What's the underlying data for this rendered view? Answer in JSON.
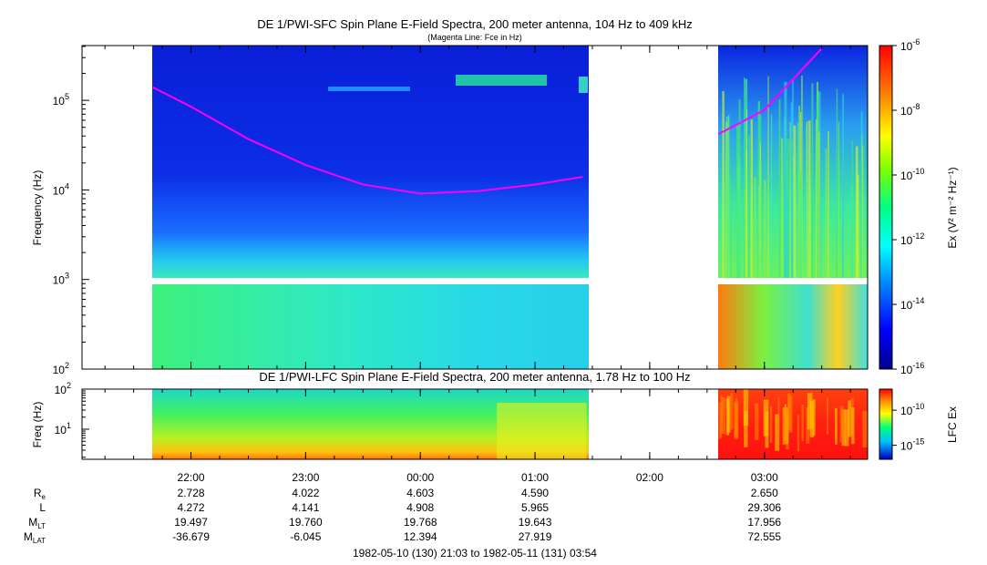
{
  "chart_data": [
    {
      "type": "heatmap",
      "title": "DE 1/PWI-SFC  Spin Plane E-Field Spectra, 200 meter antenna, 104 Hz to 409 kHz",
      "subtitle": "(Magenta Line: Fce in Hz)",
      "ylabel": "Frequency (Hz)",
      "yscale": "log",
      "ylim": [
        100,
        409000
      ],
      "y_ticks": [
        {
          "exp": "2",
          "value": 100
        },
        {
          "exp": "3",
          "value": 1000
        },
        {
          "exp": "4",
          "value": 10000
        },
        {
          "exp": "5",
          "value": 100000
        }
      ],
      "x_ticks": [
        "22:00",
        "23:00",
        "00:00",
        "01:00",
        "02:00",
        "03:00"
      ],
      "colorbar": {
        "label": "Ex (V² m⁻² Hz⁻¹)",
        "scale": "log",
        "range": [
          1e-16,
          1e-06
        ],
        "ticks": [
          {
            "exp": "-6",
            "value": 1e-06
          },
          {
            "exp": "-8",
            "value": 1e-08
          },
          {
            "exp": "-10",
            "value": 1e-10
          },
          {
            "exp": "-12",
            "value": 1e-12
          },
          {
            "exp": "-14",
            "value": 1e-14
          },
          {
            "exp": "-16",
            "value": 1e-16
          }
        ],
        "colors": [
          "#0000a0",
          "#0000ff",
          "#00a0ff",
          "#00ffff",
          "#00ff66",
          "#aaff00",
          "#ffff00",
          "#ff8800",
          "#ff0000"
        ]
      },
      "data_coverage_utc": [
        [
          "21:40",
          "01:27"
        ],
        [
          "02:36",
          "03:54"
        ]
      ],
      "gap_band_hz": [
        900,
        1040
      ],
      "fce_line": {
        "color": "#ff00ff",
        "points": [
          [
            "21:40",
            140000
          ],
          [
            "22:00",
            85000
          ],
          [
            "22:30",
            37000
          ],
          [
            "23:00",
            19000
          ],
          [
            "23:30",
            11500
          ],
          [
            "00:00",
            9100
          ],
          [
            "00:30",
            9700
          ],
          [
            "01:00",
            11500
          ],
          [
            "01:25",
            14000
          ],
          [
            "02:36",
            42000
          ],
          [
            "03:00",
            78000
          ],
          [
            "03:30",
            380000
          ]
        ]
      }
    },
    {
      "type": "heatmap",
      "title": "DE 1/PWI-LFC  Spin Plane E-Field Spectra, 200 meter antenna, 1.78 Hz to 100 Hz",
      "ylabel": "Freq (Hz)",
      "yscale": "log",
      "ylim": [
        1.78,
        100
      ],
      "y_ticks": [
        {
          "exp": "1",
          "value": 10
        },
        {
          "exp": "2",
          "value": 100
        }
      ],
      "colorbar": {
        "label": "LFC Ex",
        "scale": "log",
        "ticks": [
          {
            "exp": "-10",
            "value": 1e-10
          },
          {
            "exp": "-15",
            "value": 1e-15
          }
        ]
      },
      "data_coverage_utc": [
        [
          "21:40",
          "01:27"
        ],
        [
          "02:36",
          "03:54"
        ]
      ]
    }
  ],
  "ephemeris": {
    "columns": [
      "22:00",
      "23:00",
      "00:00",
      "01:00",
      "02:00",
      "03:00"
    ],
    "rows": [
      {
        "label": "R",
        "sub": "e",
        "values": [
          "2.728",
          "4.022",
          "4.603",
          "4.590",
          "",
          "2.650"
        ]
      },
      {
        "label": "L",
        "sub": "",
        "values": [
          "4.272",
          "4.141",
          "4.908",
          "5.965",
          "",
          "29.306"
        ]
      },
      {
        "label": "M",
        "sub": "LT",
        "values": [
          "19.497",
          "19.760",
          "19.768",
          "19.643",
          "",
          "17.956"
        ]
      },
      {
        "label": "M",
        "sub": "LAT",
        "values": [
          "-36.679",
          "-6.045",
          "12.394",
          "27.919",
          "",
          "72.555"
        ]
      }
    ]
  },
  "time_range": "1982-05-10 (130) 21:03 to 1982-05-11 (131) 03:54"
}
